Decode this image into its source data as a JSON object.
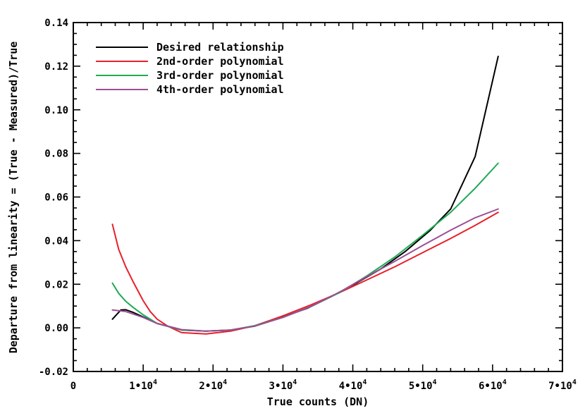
{
  "chart_data": {
    "type": "line",
    "xlabel": "True counts (DN)",
    "ylabel": "Departure from linearity = (True - Measured)/True",
    "xlim": [
      0,
      70000
    ],
    "ylim": [
      -0.02,
      0.14
    ],
    "x_ticks": [
      {
        "value": 0,
        "label": "0"
      },
      {
        "value": 10000,
        "label": "1•10",
        "exp": "4"
      },
      {
        "value": 20000,
        "label": "2•10",
        "exp": "4"
      },
      {
        "value": 30000,
        "label": "3•10",
        "exp": "4"
      },
      {
        "value": 40000,
        "label": "4•10",
        "exp": "4"
      },
      {
        "value": 50000,
        "label": "5•10",
        "exp": "4"
      },
      {
        "value": 60000,
        "label": "6•10",
        "exp": "4"
      },
      {
        "value": 70000,
        "label": "7•10",
        "exp": "4"
      }
    ],
    "y_ticks": [
      {
        "value": -0.02,
        "label": "-0.02"
      },
      {
        "value": 0.0,
        "label": "0.00"
      },
      {
        "value": 0.02,
        "label": "0.02"
      },
      {
        "value": 0.04,
        "label": "0.04"
      },
      {
        "value": 0.06,
        "label": "0.06"
      },
      {
        "value": 0.08,
        "label": "0.08"
      },
      {
        "value": 0.1,
        "label": "0.10"
      },
      {
        "value": 0.12,
        "label": "0.12"
      },
      {
        "value": 0.14,
        "label": "0.14"
      }
    ],
    "grid": false,
    "legend_position": "top-left",
    "series": [
      {
        "name": "Desired relationship",
        "color": "#000000",
        "x": [
          5600,
          6800,
          7500,
          8500,
          10000,
          12000,
          15500,
          19000,
          22500,
          26000,
          30000,
          33500,
          37000,
          40500,
          44000,
          47500,
          51000,
          54000,
          57500,
          60800
        ],
        "y": [
          0.004,
          0.0082,
          0.0083,
          0.0072,
          0.005,
          0.002,
          -0.001,
          -0.0015,
          -0.001,
          0.0008,
          0.005,
          0.009,
          0.0145,
          0.0205,
          0.027,
          0.035,
          0.0445,
          0.0545,
          0.0785,
          0.1245
        ]
      },
      {
        "name": "2nd-order polynomial",
        "color": "#e8202a",
        "x": [
          5600,
          6500,
          7500,
          8500,
          10000,
          11000,
          12000,
          13500,
          15500,
          19000,
          22500,
          26000,
          30000,
          34000,
          38000,
          42000,
          46000,
          50000,
          54000,
          57500,
          60800
        ],
        "y": [
          0.0475,
          0.036,
          0.028,
          0.0215,
          0.0125,
          0.0075,
          0.004,
          0.0008,
          -0.0022,
          -0.0028,
          -0.0015,
          0.001,
          0.0055,
          0.0105,
          0.016,
          0.022,
          0.028,
          0.0345,
          0.041,
          0.047,
          0.053
        ]
      },
      {
        "name": "3rd-order polynomial",
        "color": "#1faa55",
        "x": [
          5600,
          6500,
          7500,
          8500,
          10000,
          12000,
          15500,
          19000,
          22500,
          26000,
          30000,
          34000,
          38000,
          42000,
          46000,
          50000,
          54000,
          57500,
          60800
        ],
        "y": [
          0.0205,
          0.0158,
          0.0122,
          0.0095,
          0.006,
          0.002,
          -0.001,
          -0.0015,
          -0.001,
          0.001,
          0.0048,
          0.0098,
          0.016,
          0.0238,
          0.0325,
          0.0425,
          0.053,
          0.064,
          0.0755
        ]
      },
      {
        "name": "4th-order polynomial",
        "color": "#9b4f96",
        "x": [
          5600,
          7500,
          10000,
          12000,
          15500,
          19000,
          22500,
          26000,
          30000,
          34000,
          38000,
          42000,
          46000,
          50000,
          54000,
          57500,
          60800
        ],
        "y": [
          0.0082,
          0.0075,
          0.0048,
          0.002,
          -0.0008,
          -0.0015,
          -0.001,
          0.0008,
          0.0048,
          0.0098,
          0.0162,
          0.0235,
          0.0305,
          0.0378,
          0.0448,
          0.0505,
          0.0545
        ]
      }
    ]
  }
}
